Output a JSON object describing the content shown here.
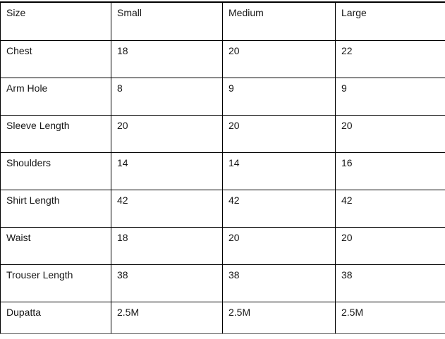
{
  "table": {
    "header": [
      "Size",
      "Small",
      "Medium",
      "Large"
    ],
    "rows": [
      [
        "Chest",
        "18",
        "20",
        "22"
      ],
      [
        "Arm Hole",
        "8",
        "9",
        "9"
      ],
      [
        "Sleeve Length",
        "20",
        "20",
        "20"
      ],
      [
        "Shoulders",
        "14",
        "14",
        "16"
      ],
      [
        "Shirt Length",
        "42",
        "42",
        "42"
      ],
      [
        "Waist",
        "18",
        "20",
        "20"
      ],
      [
        "Trouser Length",
        "38",
        "38",
        "38"
      ],
      [
        "Dupatta",
        "2.5M",
        "2.5M",
        "2.5M"
      ]
    ],
    "colors": {
      "grid": "#000000",
      "text": "#161616",
      "background": "#ffffff"
    }
  }
}
